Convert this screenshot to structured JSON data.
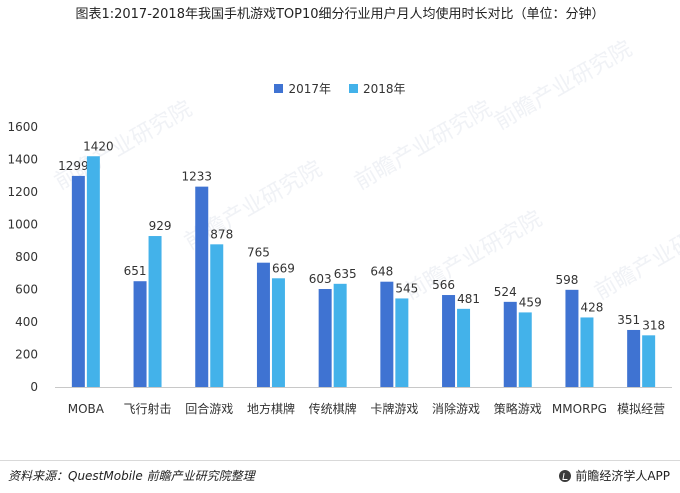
{
  "title": "图表1:2017-2018年我国手机游戏TOP10细分行业用户月人均使用时长对比（单位：分钟）",
  "legend": {
    "s2017": "2017年",
    "s2018": "2018年"
  },
  "colors": {
    "s2017": "#3f73d2",
    "s2018": "#43b2ea"
  },
  "source": "资料来源：QuestMobile  前瞻产业研究院整理",
  "brand": "前瞻经济学人APP",
  "watermark": "前瞻产业研究院",
  "chart_data": {
    "type": "bar",
    "categories": [
      "MOBA",
      "飞行射击",
      "回合游戏",
      "地方棋牌",
      "传统棋牌",
      "卡牌游戏",
      "消除游戏",
      "策略游戏",
      "MMORPG",
      "模拟经营"
    ],
    "series": [
      {
        "name": "2017年",
        "values": [
          1299,
          651,
          1233,
          765,
          603,
          648,
          566,
          524,
          598,
          351
        ]
      },
      {
        "name": "2018年",
        "values": [
          1420,
          929,
          878,
          669,
          635,
          545,
          481,
          459,
          428,
          318
        ]
      }
    ],
    "ylim": [
      0,
      1600
    ],
    "yticks": [
      0,
      200,
      400,
      600,
      800,
      1000,
      1200,
      1400,
      1600
    ],
    "grid": false
  }
}
